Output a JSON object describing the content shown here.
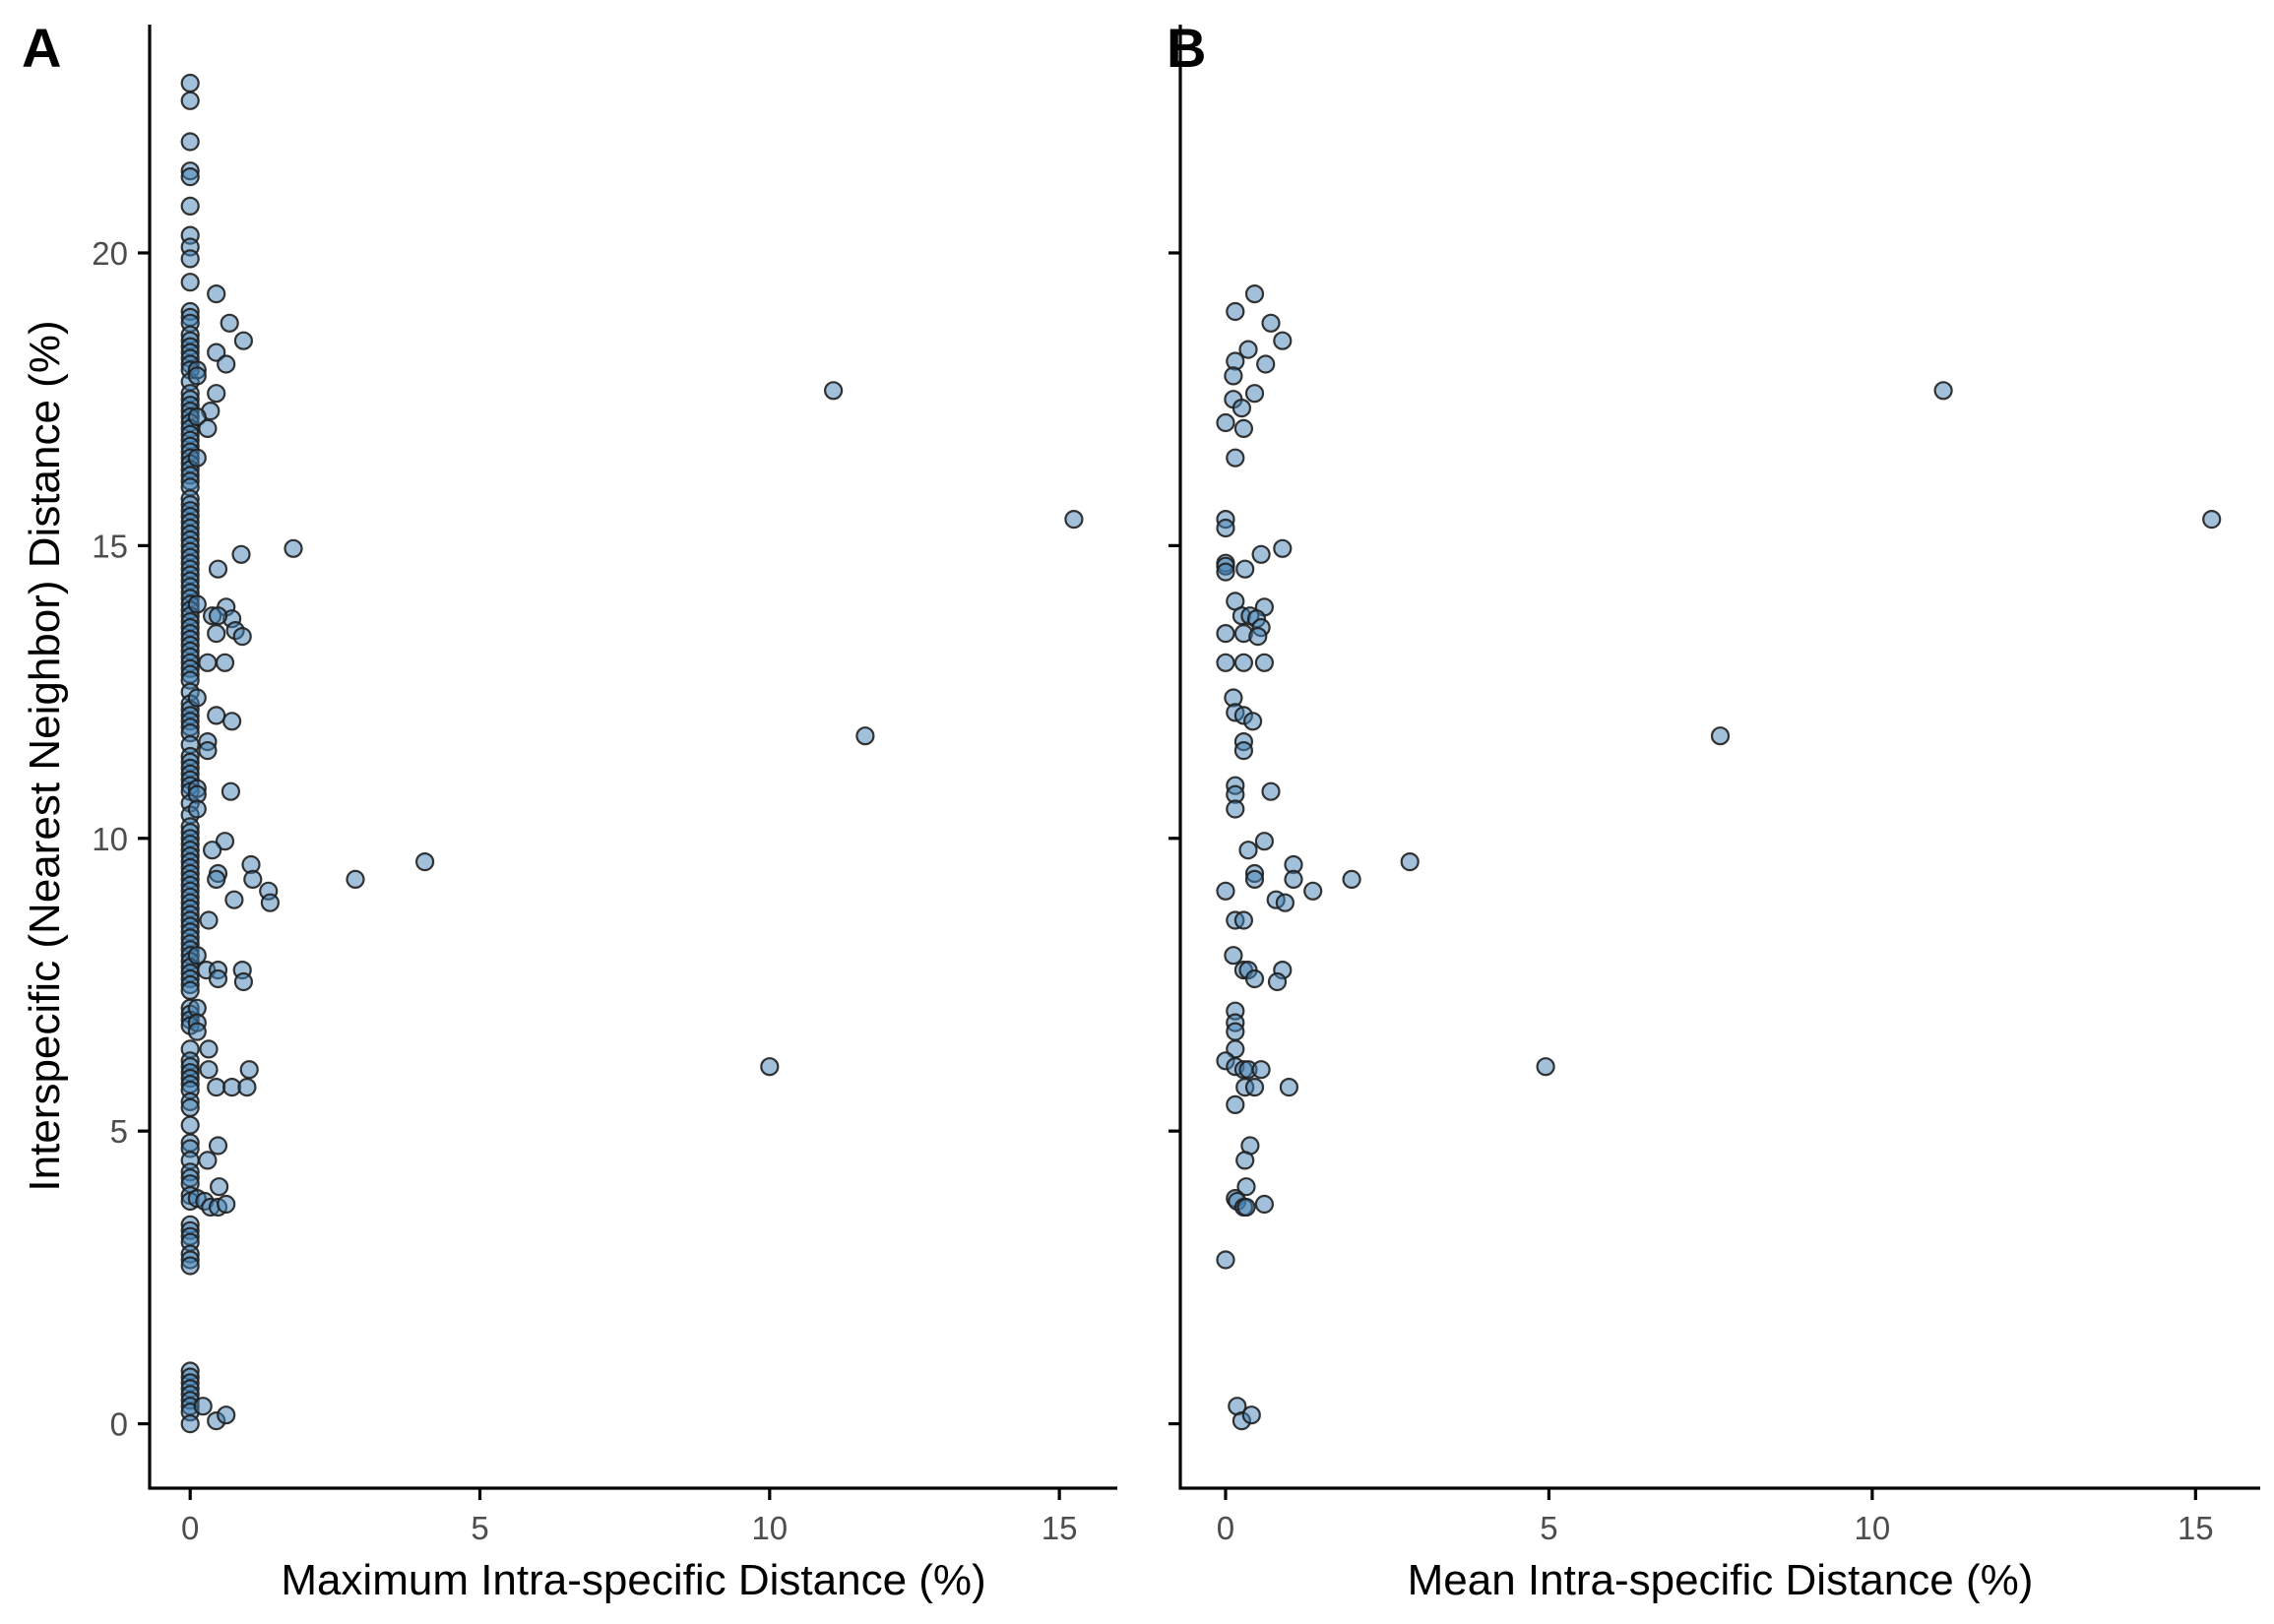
{
  "chart_data": [
    {
      "panel": "A",
      "type": "scatter",
      "xlabel": "Maximum Intra-specific Distance (%)",
      "ylabel": "Interspecific (Nearest Neighbor) Distance (%)",
      "xlim": [
        -0.7,
        16.0
      ],
      "ylim": [
        -1.1,
        23.9
      ],
      "xticks": [
        0,
        5,
        10,
        15
      ],
      "yticks": [
        0,
        5,
        10,
        15,
        20
      ],
      "show_y_labels": true,
      "grid": false,
      "marker_color": "#4682b4",
      "points": [
        [
          0,
          22.9
        ],
        [
          0,
          22.6
        ],
        [
          0,
          21.9
        ],
        [
          0,
          21.4
        ],
        [
          0,
          21.3
        ],
        [
          0,
          20.8
        ],
        [
          0,
          20.3
        ],
        [
          0,
          20.1
        ],
        [
          0,
          19.9
        ],
        [
          0,
          19.5
        ],
        [
          0,
          19.0
        ],
        [
          0,
          18.9
        ],
        [
          0,
          18.8
        ],
        [
          0,
          18.6
        ],
        [
          0,
          18.5
        ],
        [
          0,
          18.4
        ],
        [
          0,
          18.3
        ],
        [
          0,
          18.2
        ],
        [
          0,
          18.1
        ],
        [
          0,
          18.0
        ],
        [
          0,
          17.8
        ],
        [
          0,
          17.6
        ],
        [
          0,
          17.5
        ],
        [
          0,
          17.4
        ],
        [
          0,
          17.3
        ],
        [
          0,
          17.2
        ],
        [
          0,
          17.1
        ],
        [
          0,
          17.0
        ],
        [
          0,
          16.9
        ],
        [
          0,
          16.8
        ],
        [
          0,
          16.7
        ],
        [
          0,
          16.6
        ],
        [
          0,
          16.5
        ],
        [
          0,
          16.4
        ],
        [
          0,
          16.3
        ],
        [
          0,
          16.2
        ],
        [
          0,
          16.1
        ],
        [
          0,
          16.0
        ],
        [
          0,
          15.8
        ],
        [
          0,
          15.7
        ],
        [
          0,
          15.6
        ],
        [
          0,
          15.5
        ],
        [
          0,
          15.4
        ],
        [
          0,
          15.3
        ],
        [
          0,
          15.2
        ],
        [
          0,
          15.1
        ],
        [
          0,
          15.0
        ],
        [
          0,
          14.9
        ],
        [
          0,
          14.8
        ],
        [
          0,
          14.7
        ],
        [
          0,
          14.6
        ],
        [
          0,
          14.5
        ],
        [
          0,
          14.4
        ],
        [
          0,
          14.3
        ],
        [
          0,
          14.2
        ],
        [
          0,
          14.1
        ],
        [
          0,
          14.0
        ],
        [
          0,
          13.9
        ],
        [
          0,
          13.8
        ],
        [
          0,
          13.7
        ],
        [
          0,
          13.6
        ],
        [
          0,
          13.5
        ],
        [
          0,
          13.4
        ],
        [
          0,
          13.3
        ],
        [
          0,
          13.2
        ],
        [
          0,
          13.1
        ],
        [
          0,
          13.0
        ],
        [
          0,
          12.9
        ],
        [
          0,
          12.8
        ],
        [
          0,
          12.7
        ],
        [
          0,
          12.5
        ],
        [
          0,
          12.3
        ],
        [
          0,
          12.2
        ],
        [
          0,
          12.1
        ],
        [
          0,
          12.0
        ],
        [
          0,
          11.9
        ],
        [
          0,
          11.8
        ],
        [
          0,
          11.6
        ],
        [
          0,
          11.4
        ],
        [
          0,
          11.3
        ],
        [
          0,
          11.2
        ],
        [
          0,
          11.1
        ],
        [
          0,
          11.0
        ],
        [
          0,
          10.9
        ],
        [
          0,
          10.8
        ],
        [
          0,
          10.6
        ],
        [
          0,
          10.4
        ],
        [
          0,
          10.2
        ],
        [
          0,
          10.1
        ],
        [
          0,
          10.0
        ],
        [
          0,
          9.9
        ],
        [
          0,
          9.8
        ],
        [
          0,
          9.7
        ],
        [
          0,
          9.6
        ],
        [
          0,
          9.5
        ],
        [
          0,
          9.4
        ],
        [
          0,
          9.3
        ],
        [
          0,
          9.2
        ],
        [
          0,
          9.1
        ],
        [
          0,
          9.0
        ],
        [
          0,
          8.9
        ],
        [
          0,
          8.8
        ],
        [
          0,
          8.7
        ],
        [
          0,
          8.6
        ],
        [
          0,
          8.5
        ],
        [
          0,
          8.4
        ],
        [
          0,
          8.3
        ],
        [
          0,
          8.2
        ],
        [
          0,
          8.1
        ],
        [
          0,
          8.0
        ],
        [
          0,
          7.9
        ],
        [
          0,
          7.8
        ],
        [
          0,
          7.7
        ],
        [
          0,
          7.6
        ],
        [
          0,
          7.5
        ],
        [
          0,
          7.4
        ],
        [
          0,
          7.1
        ],
        [
          0,
          7.0
        ],
        [
          0,
          6.9
        ],
        [
          0,
          6.8
        ],
        [
          0,
          6.4
        ],
        [
          0,
          6.2
        ],
        [
          0,
          6.1
        ],
        [
          0,
          6.0
        ],
        [
          0,
          5.9
        ],
        [
          0,
          5.8
        ],
        [
          0,
          5.7
        ],
        [
          0,
          5.5
        ],
        [
          0,
          5.4
        ],
        [
          0,
          5.1
        ],
        [
          0,
          4.8
        ],
        [
          0,
          4.7
        ],
        [
          0,
          4.5
        ],
        [
          0,
          4.3
        ],
        [
          0,
          4.2
        ],
        [
          0,
          4.1
        ],
        [
          0,
          3.9
        ],
        [
          0,
          3.8
        ],
        [
          0,
          3.4
        ],
        [
          0,
          3.3
        ],
        [
          0,
          3.2
        ],
        [
          0,
          3.1
        ],
        [
          0,
          2.9
        ],
        [
          0,
          2.8
        ],
        [
          0,
          2.7
        ],
        [
          0,
          0.9
        ],
        [
          0,
          0.8
        ],
        [
          0,
          0.7
        ],
        [
          0,
          0.6
        ],
        [
          0,
          0.5
        ],
        [
          0,
          0.4
        ],
        [
          0,
          0.3
        ],
        [
          0,
          0.2
        ],
        [
          0,
          0.0
        ],
        [
          0.45,
          19.3
        ],
        [
          0.68,
          18.8
        ],
        [
          0.92,
          18.5
        ],
        [
          0.45,
          18.3
        ],
        [
          0.62,
          18.1
        ],
        [
          0.12,
          18.0
        ],
        [
          0.12,
          17.9
        ],
        [
          0.45,
          17.6
        ],
        [
          0.35,
          17.3
        ],
        [
          0.12,
          17.2
        ],
        [
          0.3,
          17.0
        ],
        [
          0.12,
          16.5
        ],
        [
          1.78,
          14.95
        ],
        [
          0.88,
          14.85
        ],
        [
          0.48,
          14.6
        ],
        [
          0.12,
          14.0
        ],
        [
          0.62,
          13.95
        ],
        [
          0.38,
          13.8
        ],
        [
          0.72,
          13.75
        ],
        [
          0.48,
          13.8
        ],
        [
          0.78,
          13.55
        ],
        [
          0.9,
          13.45
        ],
        [
          0.45,
          13.5
        ],
        [
          0.3,
          13.0
        ],
        [
          0.6,
          13.0
        ],
        [
          0.12,
          12.4
        ],
        [
          0.45,
          12.1
        ],
        [
          0.72,
          12.0
        ],
        [
          0.3,
          11.65
        ],
        [
          0.3,
          11.5
        ],
        [
          0.12,
          10.85
        ],
        [
          0.12,
          10.75
        ],
        [
          0.7,
          10.8
        ],
        [
          0.12,
          10.5
        ],
        [
          0.6,
          9.95
        ],
        [
          0.38,
          9.8
        ],
        [
          0.48,
          9.4
        ],
        [
          0.45,
          9.3
        ],
        [
          1.05,
          9.55
        ],
        [
          1.08,
          9.3
        ],
        [
          1.35,
          9.1
        ],
        [
          1.38,
          8.9
        ],
        [
          0.76,
          8.95
        ],
        [
          0.32,
          8.6
        ],
        [
          0.12,
          8.0
        ],
        [
          0.28,
          7.75
        ],
        [
          0.48,
          7.75
        ],
        [
          0.9,
          7.75
        ],
        [
          0.48,
          7.6
        ],
        [
          0.92,
          7.55
        ],
        [
          0.12,
          7.1
        ],
        [
          0.12,
          6.85
        ],
        [
          0.12,
          6.7
        ],
        [
          0.32,
          6.4
        ],
        [
          0.32,
          6.05
        ],
        [
          1.02,
          6.05
        ],
        [
          0.45,
          5.75
        ],
        [
          0.72,
          5.75
        ],
        [
          0.98,
          5.75
        ],
        [
          0.48,
          4.75
        ],
        [
          0.3,
          4.5
        ],
        [
          0.5,
          4.05
        ],
        [
          0.12,
          3.85
        ],
        [
          0.25,
          3.8
        ],
        [
          0.35,
          3.7
        ],
        [
          0.48,
          3.7
        ],
        [
          0.62,
          3.75
        ],
        [
          0.22,
          0.3
        ],
        [
          0.45,
          0.05
        ],
        [
          0.62,
          0.15
        ],
        [
          2.85,
          9.3
        ],
        [
          4.05,
          9.6
        ],
        [
          11.1,
          17.65
        ],
        [
          15.25,
          15.45
        ],
        [
          11.65,
          11.75
        ],
        [
          10.0,
          6.1
        ]
      ]
    },
    {
      "panel": "B",
      "type": "scatter",
      "xlabel": "Mean Intra-specific Distance (%)",
      "ylabel": "",
      "xlim": [
        -0.7,
        16.0
      ],
      "ylim": [
        -1.1,
        23.9
      ],
      "xticks": [
        0,
        5,
        10,
        15
      ],
      "yticks": [
        0,
        5,
        10,
        15,
        20
      ],
      "show_y_labels": false,
      "grid": false,
      "marker_color": "#4682b4",
      "points": [
        [
          0.45,
          19.3
        ],
        [
          0.15,
          19.0
        ],
        [
          0.7,
          18.8
        ],
        [
          0.88,
          18.5
        ],
        [
          0.35,
          18.35
        ],
        [
          0.15,
          18.15
        ],
        [
          0.62,
          18.1
        ],
        [
          0.12,
          17.9
        ],
        [
          0.45,
          17.6
        ],
        [
          0.12,
          17.5
        ],
        [
          0.25,
          17.35
        ],
        [
          0.0,
          17.1
        ],
        [
          0.28,
          17.0
        ],
        [
          0.15,
          16.5
        ],
        [
          0.0,
          15.45
        ],
        [
          0.0,
          15.3
        ],
        [
          0.0,
          14.7
        ],
        [
          0.0,
          14.65
        ],
        [
          0.0,
          14.55
        ],
        [
          0.3,
          14.6
        ],
        [
          0.55,
          14.85
        ],
        [
          0.88,
          14.95
        ],
        [
          0.15,
          14.05
        ],
        [
          0.6,
          13.95
        ],
        [
          0.25,
          13.8
        ],
        [
          0.38,
          13.8
        ],
        [
          0.48,
          13.75
        ],
        [
          0.55,
          13.6
        ],
        [
          0.0,
          13.5
        ],
        [
          0.28,
          13.5
        ],
        [
          0.5,
          13.45
        ],
        [
          0.0,
          13.0
        ],
        [
          0.28,
          13.0
        ],
        [
          0.6,
          13.0
        ],
        [
          0.12,
          12.4
        ],
        [
          0.15,
          12.15
        ],
        [
          0.28,
          12.1
        ],
        [
          0.42,
          12.0
        ],
        [
          0.28,
          11.65
        ],
        [
          0.28,
          11.5
        ],
        [
          0.15,
          10.9
        ],
        [
          0.15,
          10.75
        ],
        [
          0.7,
          10.8
        ],
        [
          0.15,
          10.5
        ],
        [
          0.6,
          9.95
        ],
        [
          0.35,
          9.8
        ],
        [
          0.45,
          9.4
        ],
        [
          0.45,
          9.3
        ],
        [
          1.05,
          9.55
        ],
        [
          1.05,
          9.3
        ],
        [
          1.35,
          9.1
        ],
        [
          0.0,
          9.1
        ],
        [
          0.78,
          8.95
        ],
        [
          0.92,
          8.9
        ],
        [
          0.15,
          8.6
        ],
        [
          0.28,
          8.6
        ],
        [
          0.12,
          8.0
        ],
        [
          0.28,
          7.75
        ],
        [
          0.35,
          7.75
        ],
        [
          0.45,
          7.6
        ],
        [
          0.88,
          7.75
        ],
        [
          0.8,
          7.55
        ],
        [
          0.15,
          7.05
        ],
        [
          0.15,
          6.85
        ],
        [
          0.15,
          6.7
        ],
        [
          0.15,
          6.4
        ],
        [
          0.0,
          6.2
        ],
        [
          0.15,
          6.1
        ],
        [
          0.28,
          6.05
        ],
        [
          0.35,
          6.05
        ],
        [
          0.55,
          6.05
        ],
        [
          0.3,
          5.75
        ],
        [
          0.45,
          5.75
        ],
        [
          0.98,
          5.75
        ],
        [
          0.15,
          5.45
        ],
        [
          0.38,
          4.75
        ],
        [
          0.3,
          4.5
        ],
        [
          0.32,
          4.05
        ],
        [
          0.15,
          3.85
        ],
        [
          0.18,
          3.8
        ],
        [
          0.28,
          3.7
        ],
        [
          0.32,
          3.7
        ],
        [
          0.6,
          3.75
        ],
        [
          0.0,
          2.8
        ],
        [
          0.18,
          0.3
        ],
        [
          0.25,
          0.05
        ],
        [
          0.4,
          0.15
        ],
        [
          1.95,
          9.3
        ],
        [
          2.85,
          9.6
        ],
        [
          7.65,
          11.75
        ],
        [
          4.95,
          6.1
        ],
        [
          11.1,
          17.65
        ],
        [
          15.25,
          15.45
        ]
      ]
    }
  ]
}
